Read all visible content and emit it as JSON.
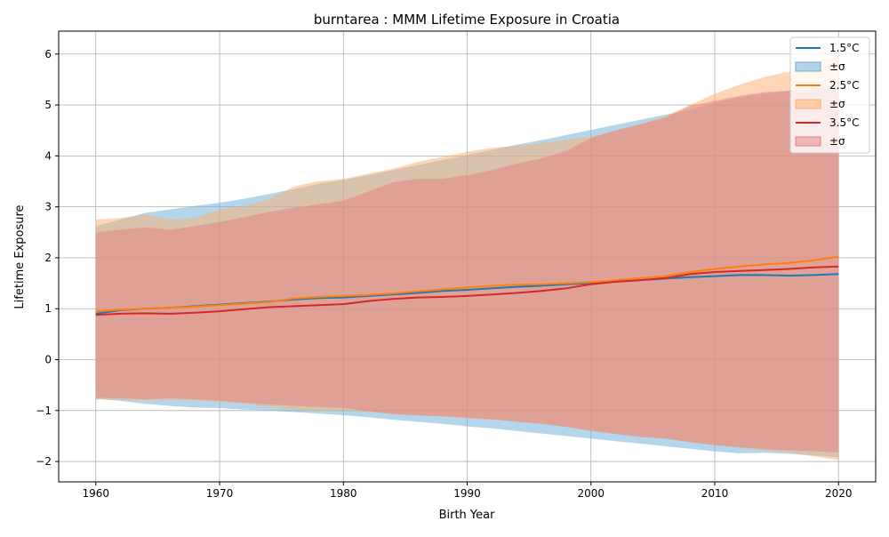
{
  "chart_data": {
    "type": "area",
    "title": "burntarea : MMM Lifetime Exposure in Croatia",
    "xlabel": "Birth Year",
    "ylabel": "Lifetime Exposure",
    "xlim": [
      1957,
      2023
    ],
    "ylim": [
      -2.4,
      6.45
    ],
    "xticks": [
      1960,
      1970,
      1980,
      1990,
      2000,
      2010,
      2020
    ],
    "yticks": [
      -2,
      -1,
      0,
      1,
      2,
      3,
      4,
      5,
      6
    ],
    "ytick_labels": [
      "−2",
      "−1",
      "0",
      "1",
      "2",
      "3",
      "4",
      "5",
      "6"
    ],
    "grid": true,
    "legend_position": "top-right",
    "x": [
      1960,
      1962,
      1964,
      1966,
      1968,
      1970,
      1972,
      1974,
      1976,
      1978,
      1980,
      1982,
      1984,
      1986,
      1988,
      1990,
      1992,
      1994,
      1996,
      1998,
      2000,
      2002,
      2004,
      2006,
      2008,
      2010,
      2012,
      2014,
      2016,
      2018,
      2020
    ],
    "series": [
      {
        "name": "1.5°C",
        "band_label": "±σ",
        "color": "#1f77b4",
        "band_color": "#6baed6",
        "mean": [
          0.9,
          0.97,
          1.0,
          1.02,
          1.05,
          1.08,
          1.11,
          1.14,
          1.18,
          1.21,
          1.22,
          1.25,
          1.28,
          1.31,
          1.35,
          1.37,
          1.4,
          1.43,
          1.45,
          1.48,
          1.5,
          1.53,
          1.56,
          1.59,
          1.62,
          1.64,
          1.66,
          1.66,
          1.65,
          1.66,
          1.68
        ],
        "upper": [
          2.62,
          2.75,
          2.88,
          2.95,
          3.02,
          3.08,
          3.16,
          3.25,
          3.35,
          3.45,
          3.53,
          3.62,
          3.72,
          3.82,
          3.92,
          4.02,
          4.12,
          4.22,
          4.31,
          4.41,
          4.51,
          4.61,
          4.71,
          4.81,
          4.9,
          5.05,
          5.15,
          5.22,
          5.28,
          5.34,
          5.38
        ],
        "lower": [
          -0.77,
          -0.81,
          -0.87,
          -0.91,
          -0.94,
          -0.95,
          -0.98,
          -1.0,
          -1.03,
          -1.06,
          -1.09,
          -1.13,
          -1.18,
          -1.22,
          -1.26,
          -1.31,
          -1.35,
          -1.4,
          -1.45,
          -1.5,
          -1.55,
          -1.6,
          -1.65,
          -1.7,
          -1.75,
          -1.8,
          -1.84,
          -1.83,
          -1.85,
          -1.88,
          -1.92
        ]
      },
      {
        "name": "2.5°C",
        "band_label": "±σ",
        "color": "#ff7f0e",
        "band_color": "#fdae6b",
        "mean": [
          0.95,
          0.98,
          1.0,
          1.02,
          1.04,
          1.07,
          1.1,
          1.13,
          1.2,
          1.23,
          1.25,
          1.27,
          1.3,
          1.34,
          1.38,
          1.42,
          1.45,
          1.47,
          1.48,
          1.5,
          1.52,
          1.56,
          1.6,
          1.64,
          1.72,
          1.78,
          1.83,
          1.87,
          1.9,
          1.95,
          2.02
        ],
        "upper": [
          2.75,
          2.78,
          2.85,
          2.75,
          2.78,
          2.95,
          3.02,
          3.15,
          3.4,
          3.5,
          3.55,
          3.65,
          3.75,
          3.88,
          3.98,
          4.08,
          4.16,
          4.2,
          4.25,
          4.32,
          4.38,
          4.5,
          4.62,
          4.78,
          5.0,
          5.22,
          5.4,
          5.55,
          5.65,
          5.85,
          5.95
        ],
        "lower": [
          -0.78,
          -0.79,
          -0.8,
          -0.79,
          -0.8,
          -0.83,
          -0.87,
          -0.92,
          -0.98,
          -1.02,
          -1.0,
          -1.03,
          -1.06,
          -1.09,
          -1.12,
          -1.15,
          -1.18,
          -1.21,
          -1.26,
          -1.32,
          -1.38,
          -1.45,
          -1.5,
          -1.55,
          -1.62,
          -1.68,
          -1.73,
          -1.78,
          -1.82,
          -1.9,
          -1.97
        ]
      },
      {
        "name": "3.5°C",
        "band_label": "±σ",
        "color": "#d62728",
        "band_color": "#e6807f",
        "mean": [
          0.88,
          0.9,
          0.91,
          0.9,
          0.92,
          0.95,
          0.99,
          1.03,
          1.05,
          1.07,
          1.09,
          1.15,
          1.19,
          1.22,
          1.23,
          1.25,
          1.28,
          1.31,
          1.35,
          1.4,
          1.48,
          1.53,
          1.56,
          1.6,
          1.68,
          1.72,
          1.74,
          1.76,
          1.78,
          1.81,
          1.83
        ],
        "upper": [
          2.5,
          2.55,
          2.6,
          2.55,
          2.62,
          2.7,
          2.8,
          2.9,
          2.98,
          3.05,
          3.12,
          3.3,
          3.48,
          3.55,
          3.55,
          3.62,
          3.72,
          3.85,
          3.95,
          4.1,
          4.35,
          4.5,
          4.62,
          4.75,
          4.98,
          5.08,
          5.18,
          5.25,
          5.28,
          5.3,
          5.32
        ],
        "lower": [
          -0.75,
          -0.76,
          -0.78,
          -0.76,
          -0.78,
          -0.81,
          -0.85,
          -0.88,
          -0.91,
          -0.93,
          -0.95,
          -1.01,
          -1.07,
          -1.1,
          -1.11,
          -1.14,
          -1.17,
          -1.22,
          -1.26,
          -1.32,
          -1.4,
          -1.46,
          -1.52,
          -1.55,
          -1.62,
          -1.68,
          -1.72,
          -1.76,
          -1.78,
          -1.8,
          -1.82
        ]
      }
    ]
  }
}
